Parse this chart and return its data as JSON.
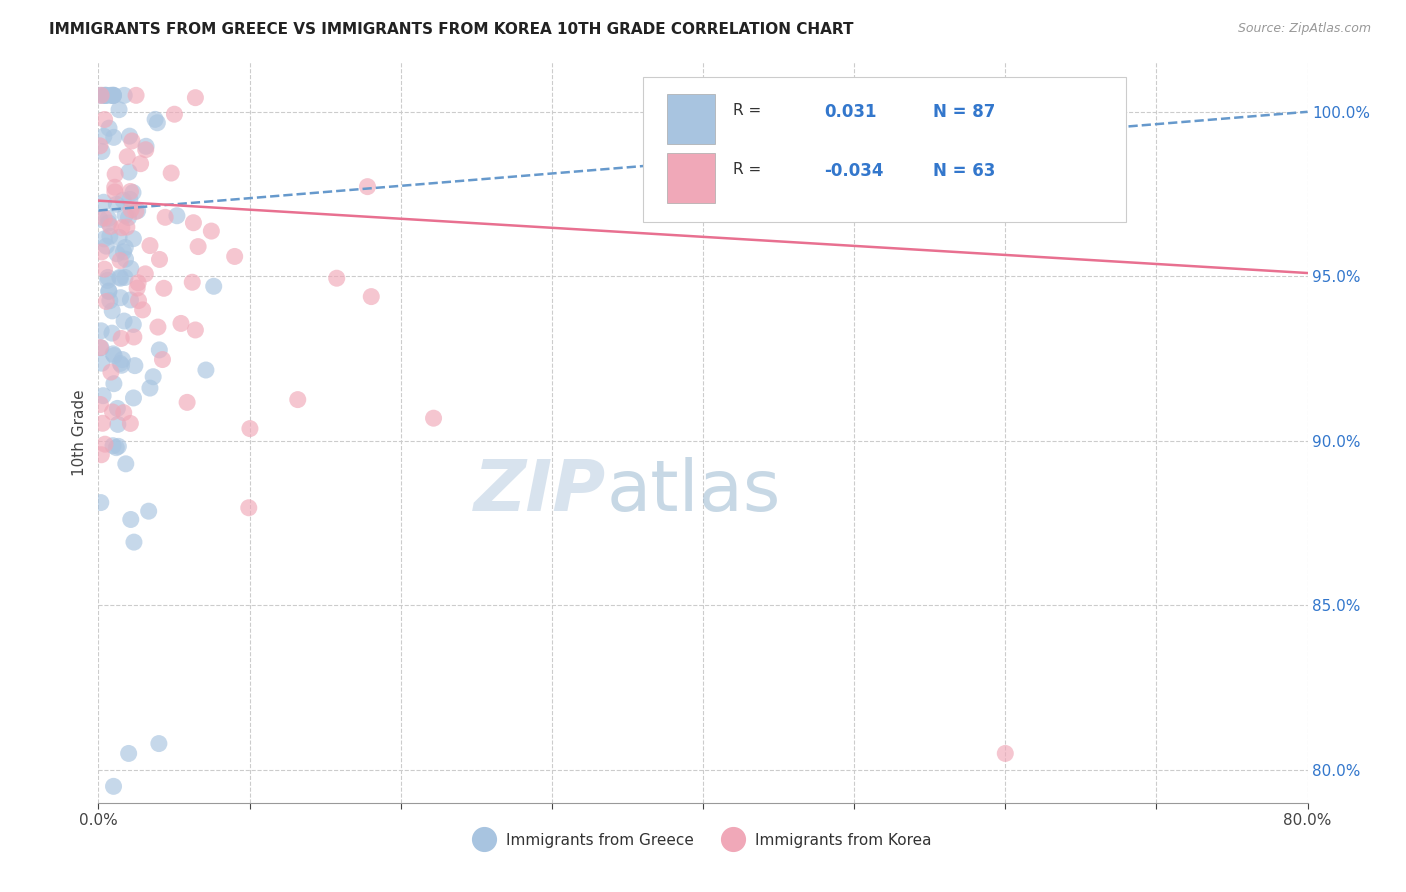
{
  "title": "IMMIGRANTS FROM GREECE VS IMMIGRANTS FROM KOREA 10TH GRADE CORRELATION CHART",
  "source": "Source: ZipAtlas.com",
  "ylabel": "10th Grade",
  "blue_color": "#a8c4e0",
  "pink_color": "#f0a8b8",
  "trend_blue_color": "#6699cc",
  "trend_pink_color": "#e87090",
  "x_min": 0.0,
  "x_max": 0.8,
  "y_min": 79.0,
  "y_max": 101.5,
  "y_ticks": [
    80.0,
    85.0,
    90.0,
    95.0,
    100.0
  ],
  "blue_trend_x": [
    0.0,
    0.8
  ],
  "blue_trend_y": [
    97.0,
    100.0
  ],
  "pink_trend_x": [
    0.0,
    0.8
  ],
  "pink_trend_y": [
    97.3,
    95.1
  ],
  "legend_r_blue": "R = ",
  "legend_rv_blue": "0.031",
  "legend_n_blue": "N = 87",
  "legend_r_pink": "R = ",
  "legend_rv_pink": "-0.034",
  "legend_n_pink": "N = 63",
  "watermark_zip": "ZIP",
  "watermark_atlas": "atlas",
  "bottom_legend_blue": "Immigrants from Greece",
  "bottom_legend_pink": "Immigrants from Korea"
}
